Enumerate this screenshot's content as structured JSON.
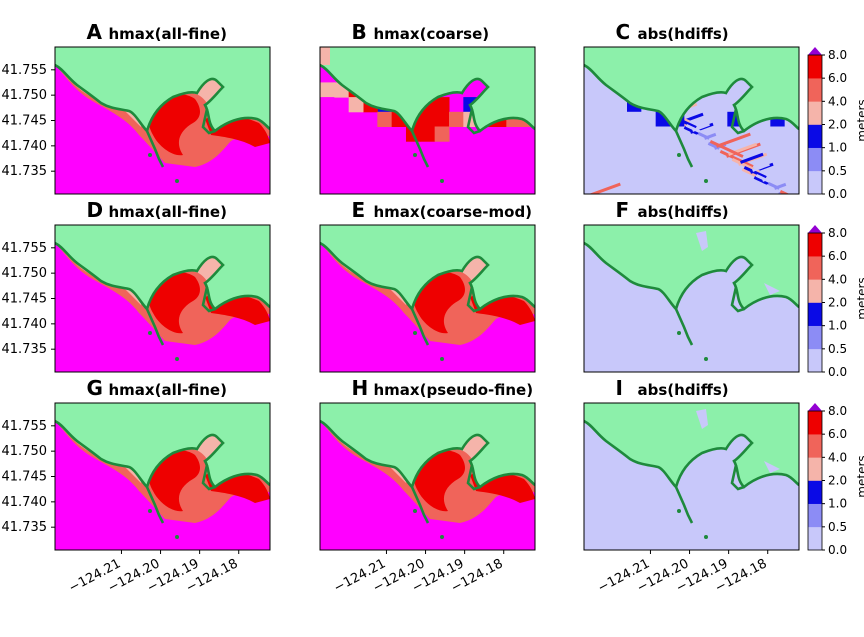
{
  "chart_data": {
    "type": "heatmap",
    "y_tick_labels": [
      "41.755",
      "41.750",
      "41.745",
      "41.740",
      "41.735"
    ],
    "x_tick_labels": [
      "−124.21",
      "−124.20",
      "−124.19",
      "−124.18"
    ],
    "xlim": [
      -124.227,
      -124.172
    ],
    "ylim": [
      41.7305,
      41.7595
    ],
    "panels": [
      {
        "letter": "A",
        "title": "hmax(all-fine)",
        "kind": "fine"
      },
      {
        "letter": "B",
        "title": "hmax(coarse)",
        "kind": "coarse"
      },
      {
        "letter": "C",
        "title": "abs(hdiffs)",
        "kind": "noisy"
      },
      {
        "letter": "D",
        "title": "hmax(all-fine)",
        "kind": "fine"
      },
      {
        "letter": "E",
        "title": "hmax(coarse-mod)",
        "kind": "fine"
      },
      {
        "letter": "F",
        "title": "abs(hdiffs)",
        "kind": "zero"
      },
      {
        "letter": "G",
        "title": "hmax(all-fine)",
        "kind": "fine"
      },
      {
        "letter": "H",
        "title": "hmax(pseudo-fine)",
        "kind": "fine"
      },
      {
        "letter": "I",
        "title": "abs(hdiffs)",
        "kind": "zero"
      }
    ],
    "colorbar": {
      "label": "meters",
      "tick_labels": [
        "8.0",
        "6.0",
        "4.0",
        "2.0",
        "1.0",
        "0.5",
        "0.0"
      ],
      "colors": [
        "#c8c8fa",
        "#8c8cf5",
        "#0a0ae6",
        "#f5b4aa",
        "#f0645a",
        "#ee0000"
      ]
    },
    "land_color": "#8cf0aa",
    "deep_color": "#ff00ff",
    "shoreline_color": "#1e8a3c"
  }
}
